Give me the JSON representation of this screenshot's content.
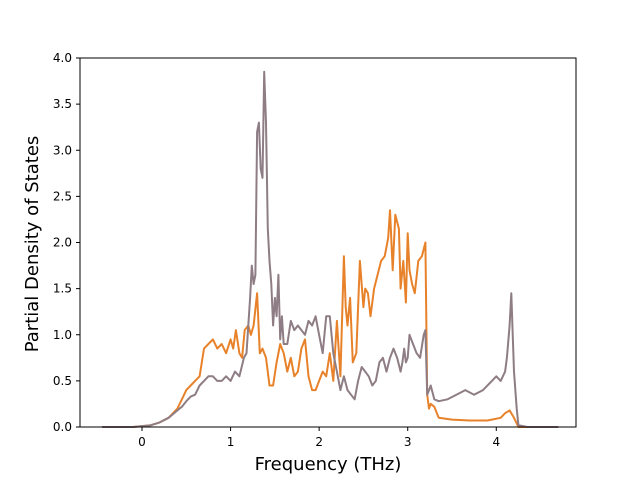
{
  "chart_data": {
    "type": "line",
    "title": "",
    "xlabel": "Frequency (THz)",
    "ylabel": "Partial Density of States",
    "xlim": [
      -0.7,
      4.9
    ],
    "ylim": [
      0.0,
      4.0
    ],
    "xticks": [
      "0",
      "1",
      "2",
      "3",
      "4"
    ],
    "xtick_values": [
      0,
      1,
      2,
      3,
      4
    ],
    "yticks": [
      "0.0",
      "0.5",
      "1.0",
      "1.5",
      "2.0",
      "2.5",
      "3.0",
      "3.5",
      "4.0"
    ],
    "ytick_values": [
      0.0,
      0.5,
      1.0,
      1.5,
      2.0,
      2.5,
      3.0,
      3.5,
      4.0
    ],
    "grid": false,
    "legend": "none",
    "series": [
      {
        "color": "#e8822a",
        "x": [
          -0.45,
          -0.1,
          0.0,
          0.1,
          0.2,
          0.3,
          0.4,
          0.45,
          0.5,
          0.55,
          0.6,
          0.65,
          0.7,
          0.75,
          0.8,
          0.85,
          0.9,
          0.95,
          1.0,
          1.03,
          1.06,
          1.1,
          1.13,
          1.16,
          1.2,
          1.23,
          1.26,
          1.3,
          1.33,
          1.36,
          1.4,
          1.44,
          1.48,
          1.52,
          1.56,
          1.6,
          1.64,
          1.68,
          1.72,
          1.76,
          1.8,
          1.84,
          1.88,
          1.92,
          1.96,
          2.0,
          2.04,
          2.08,
          2.12,
          2.16,
          2.2,
          2.24,
          2.28,
          2.3,
          2.32,
          2.35,
          2.38,
          2.42,
          2.46,
          2.5,
          2.52,
          2.55,
          2.58,
          2.62,
          2.66,
          2.7,
          2.74,
          2.78,
          2.8,
          2.83,
          2.86,
          2.9,
          2.92,
          2.95,
          2.98,
          3.0,
          3.02,
          3.05,
          3.08,
          3.12,
          3.16,
          3.2,
          3.22,
          3.24,
          3.26,
          3.3,
          3.35,
          3.5,
          3.7,
          3.9,
          4.05,
          4.1,
          4.15,
          4.2,
          4.25,
          4.35,
          4.7
        ],
        "y": [
          0.0,
          0.0,
          0.01,
          0.02,
          0.05,
          0.1,
          0.2,
          0.3,
          0.4,
          0.45,
          0.5,
          0.55,
          0.85,
          0.9,
          0.95,
          0.85,
          0.9,
          0.8,
          0.95,
          0.85,
          1.05,
          0.8,
          0.75,
          1.05,
          1.1,
          1.0,
          1.1,
          1.45,
          0.8,
          0.85,
          0.75,
          0.45,
          0.45,
          0.7,
          0.9,
          0.8,
          0.6,
          0.75,
          0.55,
          0.6,
          0.85,
          0.95,
          0.55,
          0.4,
          0.4,
          0.5,
          0.6,
          0.55,
          0.8,
          0.5,
          1.15,
          0.55,
          1.85,
          1.3,
          1.1,
          1.4,
          0.7,
          0.8,
          1.8,
          1.3,
          1.5,
          1.45,
          1.2,
          1.5,
          1.65,
          1.8,
          1.85,
          2.05,
          2.35,
          1.7,
          2.3,
          2.15,
          1.5,
          1.8,
          1.35,
          2.1,
          1.7,
          1.55,
          1.45,
          1.8,
          1.85,
          2.0,
          0.35,
          0.2,
          0.25,
          0.22,
          0.1,
          0.08,
          0.07,
          0.07,
          0.1,
          0.15,
          0.18,
          0.1,
          0.0,
          0.0,
          0.0
        ]
      },
      {
        "color": "#8e7d84",
        "x": [
          -0.45,
          -0.1,
          0.0,
          0.1,
          0.2,
          0.3,
          0.4,
          0.45,
          0.5,
          0.55,
          0.6,
          0.65,
          0.7,
          0.75,
          0.8,
          0.85,
          0.9,
          0.95,
          1.0,
          1.05,
          1.1,
          1.15,
          1.18,
          1.2,
          1.22,
          1.24,
          1.26,
          1.28,
          1.3,
          1.32,
          1.34,
          1.36,
          1.38,
          1.4,
          1.42,
          1.44,
          1.46,
          1.48,
          1.5,
          1.52,
          1.54,
          1.56,
          1.58,
          1.6,
          1.64,
          1.68,
          1.72,
          1.76,
          1.8,
          1.84,
          1.88,
          1.92,
          1.96,
          2.0,
          2.04,
          2.08,
          2.12,
          2.16,
          2.2,
          2.24,
          2.28,
          2.32,
          2.36,
          2.4,
          2.44,
          2.48,
          2.52,
          2.56,
          2.6,
          2.64,
          2.68,
          2.72,
          2.76,
          2.8,
          2.84,
          2.88,
          2.92,
          2.94,
          2.96,
          2.98,
          3.0,
          3.02,
          3.06,
          3.1,
          3.14,
          3.18,
          3.2,
          3.22,
          3.24,
          3.26,
          3.3,
          3.35,
          3.45,
          3.55,
          3.65,
          3.75,
          3.85,
          3.95,
          4.0,
          4.05,
          4.1,
          4.12,
          4.15,
          4.17,
          4.2,
          4.23,
          4.25,
          4.35,
          4.7
        ],
        "y": [
          0.0,
          0.0,
          0.01,
          0.02,
          0.05,
          0.1,
          0.18,
          0.22,
          0.28,
          0.33,
          0.35,
          0.45,
          0.5,
          0.55,
          0.55,
          0.5,
          0.5,
          0.55,
          0.5,
          0.6,
          0.55,
          0.75,
          0.8,
          1.1,
          1.4,
          1.75,
          1.55,
          1.65,
          3.2,
          3.3,
          2.8,
          2.7,
          3.85,
          3.3,
          2.15,
          1.8,
          1.55,
          1.1,
          1.4,
          1.2,
          1.65,
          0.95,
          1.2,
          0.9,
          0.9,
          1.15,
          1.05,
          1.1,
          1.05,
          1.0,
          1.15,
          1.1,
          1.2,
          1.0,
          0.8,
          1.2,
          1.2,
          0.8,
          0.6,
          0.4,
          0.55,
          0.4,
          0.35,
          0.3,
          0.5,
          0.65,
          0.6,
          0.55,
          0.45,
          0.5,
          0.7,
          0.75,
          0.6,
          0.75,
          0.85,
          0.75,
          0.6,
          0.7,
          0.85,
          0.7,
          0.75,
          1.0,
          0.9,
          0.8,
          0.75,
          1.0,
          1.05,
          0.35,
          0.4,
          0.45,
          0.3,
          0.28,
          0.3,
          0.35,
          0.4,
          0.35,
          0.4,
          0.5,
          0.55,
          0.5,
          0.6,
          0.75,
          1.1,
          1.45,
          0.6,
          0.2,
          0.02,
          0.0,
          0.0
        ]
      }
    ]
  }
}
